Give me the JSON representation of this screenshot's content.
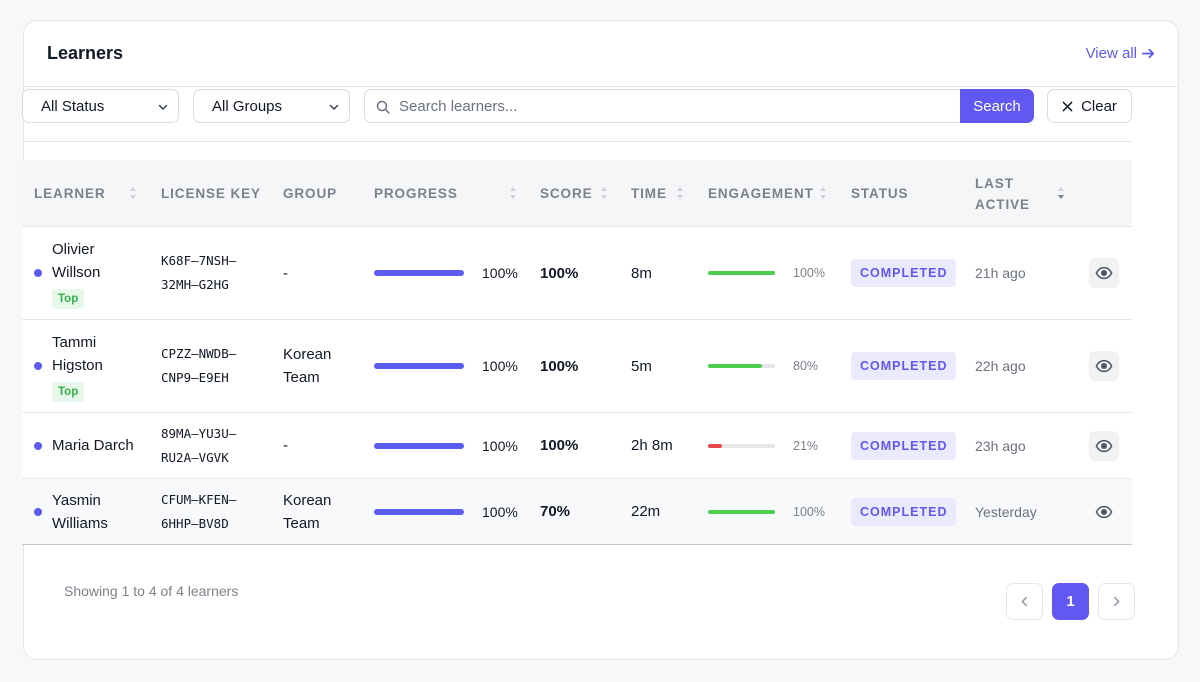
{
  "header": {
    "title": "Learners",
    "view_all": "View all"
  },
  "filters": {
    "status": "All Status",
    "groups": "All Groups",
    "search_placeholder": "Search learners...",
    "search_button": "Search",
    "clear_button": "Clear"
  },
  "table": {
    "columns": {
      "learner": "LEARNER",
      "license_key": "LICENSE KEY",
      "group": "GROUP",
      "progress": "PROGRESS",
      "score": "SCORE",
      "time": "TIME",
      "engagement": "ENGAGEMENT",
      "status": "STATUS",
      "last_active_1": "LAST",
      "last_active_2": "ACTIVE"
    },
    "rows": [
      {
        "name1": "Olivier",
        "name2": "Willson",
        "badge": "Top",
        "key1": "K68F–7NSH–",
        "key2": "32MH–G2HG",
        "group1": "-",
        "group2": "",
        "progress": 100,
        "progress_label": "100%",
        "score": "100%",
        "time": "8m",
        "engagement": 100,
        "engagement_label": "100%",
        "engagement_color": "#4ccf4f",
        "status": "COMPLETED",
        "last_active": "21h ago"
      },
      {
        "name1": "Tammi",
        "name2": "Higston",
        "badge": "Top",
        "key1": "CPZZ–NWDB–",
        "key2": "CNP9–E9EH",
        "group1": "Korean",
        "group2": "Team",
        "progress": 100,
        "progress_label": "100%",
        "score": "100%",
        "time": "5m",
        "engagement": 80,
        "engagement_label": "80%",
        "engagement_color": "#4ccf4f",
        "status": "COMPLETED",
        "last_active": "22h ago"
      },
      {
        "name1": "Maria Darch",
        "name2": "",
        "badge": "",
        "key1": "89MA–YU3U–",
        "key2": "RU2A–VGVK",
        "group1": "-",
        "group2": "",
        "progress": 100,
        "progress_label": "100%",
        "score": "100%",
        "time": "2h 8m",
        "engagement": 21,
        "engagement_label": "21%",
        "engagement_color": "#e5484d",
        "status": "COMPLETED",
        "last_active": "23h ago"
      },
      {
        "name1": "Yasmin",
        "name2": "Williams",
        "badge": "",
        "key1": "CFUM–KFEN–",
        "key2": "6HHP–BV8D",
        "group1": "Korean",
        "group2": "Team",
        "progress": 100,
        "progress_label": "100%",
        "score": "70%",
        "time": "22m",
        "engagement": 100,
        "engagement_label": "100%",
        "engagement_color": "#4ccf4f",
        "status": "COMPLETED",
        "last_active": "Yesterday"
      }
    ]
  },
  "footer": {
    "showing": "Showing 1 to 4 of 4 learners",
    "current_page": "1"
  },
  "colors": {
    "accent": "#6058f0",
    "success": "#4ccf4f",
    "danger": "#e5484d"
  },
  "icons": {
    "arrow": "arrow-right-icon",
    "chevron": "chevron-down-icon",
    "search": "search-icon",
    "clear": "close-icon",
    "sort": "sort-icon",
    "view": "eye-icon",
    "prev": "chevron-left-icon",
    "next": "chevron-right-icon"
  }
}
